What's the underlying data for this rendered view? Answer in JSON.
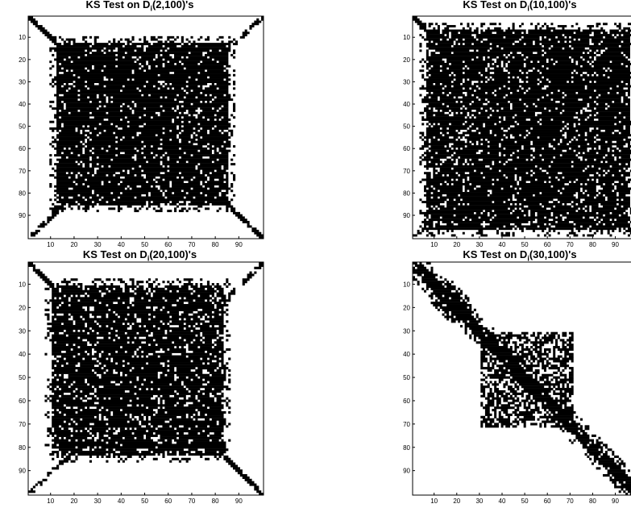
{
  "colors": {
    "ink": "#000000",
    "background": "#ffffff"
  },
  "chart_data": [
    {
      "type": "heatmap",
      "title_prefix": "KS Test on D",
      "title_sub": "i",
      "title_suffix": "(2,100)'s",
      "matrix_size": 100,
      "xlim": [
        0,
        100
      ],
      "ylim": [
        0,
        100
      ],
      "xticks": [
        10,
        20,
        30,
        40,
        50,
        60,
        70,
        80,
        90
      ],
      "yticks": [
        10,
        20,
        30,
        40,
        50,
        60,
        70,
        80,
        90
      ],
      "y_direction": "reversed",
      "pattern": "dense-square",
      "dense_block": [
        12,
        84
      ],
      "fill_density": 0.88,
      "seed": 17
    },
    {
      "type": "heatmap",
      "title_prefix": "KS Test on D",
      "title_sub": "i",
      "title_suffix": "(10,100)'s",
      "matrix_size": 100,
      "xlim": [
        0,
        100
      ],
      "ylim": [
        0,
        100
      ],
      "xticks": [
        10,
        20,
        30,
        40,
        50,
        60,
        70,
        80,
        90
      ],
      "yticks": [
        10,
        20,
        30,
        40,
        50,
        60,
        70,
        80,
        90
      ],
      "y_direction": "reversed",
      "pattern": "dense-square",
      "dense_block": [
        6,
        95
      ],
      "fill_density": 0.86,
      "seed": 53
    },
    {
      "type": "heatmap",
      "title_prefix": "KS Test on D",
      "title_sub": "i",
      "title_suffix": "(20,100)'s",
      "matrix_size": 100,
      "xlim": [
        0,
        100
      ],
      "ylim": [
        0,
        100
      ],
      "xticks": [
        10,
        20,
        30,
        40,
        50,
        60,
        70,
        80,
        90
      ],
      "yticks": [
        10,
        20,
        30,
        40,
        50,
        60,
        70,
        80,
        90
      ],
      "y_direction": "reversed",
      "pattern": "dense-square",
      "dense_block": [
        10,
        82
      ],
      "fill_density": 0.84,
      "seed": 91
    },
    {
      "type": "heatmap",
      "title_prefix": "KS Test on D",
      "title_sub": "i",
      "title_suffix": "(30,100)'s",
      "matrix_size": 100,
      "xlim": [
        0,
        100
      ],
      "ylim": [
        0,
        100
      ],
      "xticks": [
        10,
        20,
        30,
        40,
        50,
        60,
        70,
        80,
        90
      ],
      "yticks": [
        10,
        20,
        30,
        40,
        50,
        60,
        70,
        80,
        90
      ],
      "y_direction": "reversed",
      "pattern": "diagonal-band",
      "dense_block": [
        30,
        70
      ],
      "fill_density": 0.8,
      "seed": 7
    }
  ]
}
